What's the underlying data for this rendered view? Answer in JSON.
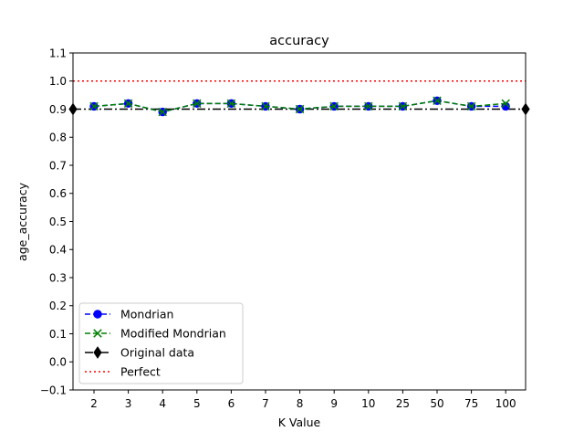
{
  "chart_data": {
    "type": "line",
    "title": "accuracy",
    "xlabel": "K Value",
    "ylabel": "age_accuracy",
    "categories": [
      "2",
      "3",
      "4",
      "5",
      "6",
      "7",
      "8",
      "9",
      "10",
      "25",
      "50",
      "75",
      "100"
    ],
    "ylim": [
      -0.1,
      1.1
    ],
    "yticks": [
      -0.1,
      0.0,
      0.1,
      0.2,
      0.3,
      0.4,
      0.5,
      0.6,
      0.7,
      0.8,
      0.9,
      1.0,
      1.1
    ],
    "ytick_labels": [
      "−0.1",
      "0.0",
      "0.1",
      "0.2",
      "0.3",
      "0.4",
      "0.5",
      "0.6",
      "0.7",
      "0.8",
      "0.9",
      "1.0",
      "1.1"
    ],
    "grid": false,
    "legend_position": "lower-left",
    "series": [
      {
        "name": "Mondrian",
        "color": "#0000ff",
        "linestyle": "dashed",
        "marker": "circle",
        "values": [
          0.91,
          0.92,
          0.89,
          0.92,
          0.92,
          0.91,
          0.9,
          0.91,
          0.91,
          0.91,
          0.93,
          0.91,
          0.91
        ]
      },
      {
        "name": "Modified Mondrian",
        "color": "#008000",
        "linestyle": "dashed",
        "marker": "x",
        "values": [
          0.91,
          0.92,
          0.89,
          0.92,
          0.92,
          0.91,
          0.9,
          0.91,
          0.91,
          0.91,
          0.93,
          0.91,
          0.92
        ]
      }
    ],
    "reference_lines": [
      {
        "name": "Original data",
        "color": "#000000",
        "linestyle": "dashdot",
        "marker": "diamond",
        "value": 0.9
      },
      {
        "name": "Perfect",
        "color": "#ff0000",
        "linestyle": "dotted",
        "value": 1.0
      }
    ]
  }
}
